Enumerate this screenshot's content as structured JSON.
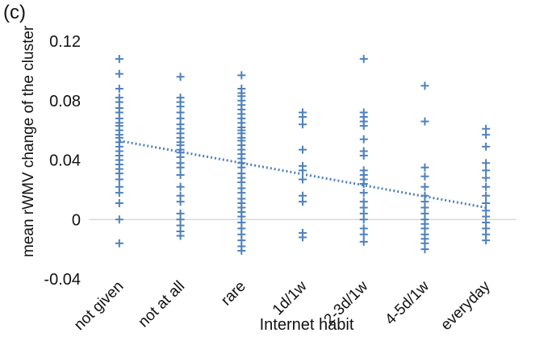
{
  "panel_label": "(c)",
  "chart_data": {
    "type": "scatter",
    "title": "",
    "xlabel": "Internet habit",
    "ylabel": "mean rWMV change of the cluster",
    "categories": [
      "not given",
      "not at all",
      "rare",
      "1d/1w",
      "2-3d/1w",
      "4-5d/1w",
      "everyday"
    ],
    "ylim": [
      -0.04,
      0.12
    ],
    "yticks": [
      -0.04,
      0,
      0.04,
      0.08,
      0.12
    ],
    "ytick_labels": [
      "-0.04",
      "0",
      "0.04",
      "0.08",
      "0.12"
    ],
    "marker": "plus",
    "marker_color": "#4f81bd",
    "grid": "zero line only",
    "legend": "none",
    "series": [
      {
        "values": [
          [
            0.108,
            0.098,
            0.088,
            0.082,
            0.079,
            0.075,
            0.072,
            0.068,
            0.065,
            0.063,
            0.06,
            0.057,
            0.055,
            0.052,
            0.049,
            0.046,
            0.043,
            0.04,
            0.037,
            0.034,
            0.031,
            0.027,
            0.022,
            0.018,
            0.011,
            0.0,
            -0.016
          ],
          [
            0.096,
            0.082,
            0.079,
            0.076,
            0.072,
            0.068,
            0.064,
            0.061,
            0.058,
            0.055,
            0.052,
            0.05,
            0.047,
            0.045,
            0.042,
            0.038,
            0.035,
            0.03,
            0.022,
            0.016,
            0.012,
            0.004,
            0.0,
            -0.004,
            -0.008,
            -0.011
          ],
          [
            0.097,
            0.088,
            0.085,
            0.083,
            0.08,
            0.077,
            0.074,
            0.071,
            0.068,
            0.065,
            0.062,
            0.06,
            0.058,
            0.055,
            0.053,
            0.05,
            0.047,
            0.044,
            0.041,
            0.038,
            0.035,
            0.031,
            0.028,
            0.025,
            0.021,
            0.018,
            0.014,
            0.011,
            0.008,
            0.005,
            0.002,
            -0.002,
            -0.006,
            -0.01,
            -0.014,
            -0.018,
            -0.021
          ],
          [
            0.072,
            0.069,
            0.064,
            0.047,
            0.036,
            0.033,
            0.027,
            0.016,
            0.012,
            -0.009,
            -0.012
          ],
          [
            0.108,
            0.072,
            0.069,
            0.066,
            0.063,
            0.054,
            0.046,
            0.043,
            0.033,
            0.03,
            0.027,
            0.024,
            0.018,
            0.012,
            0.008,
            0.004,
            0.0,
            -0.006,
            -0.01,
            -0.015
          ],
          [
            0.09,
            0.066,
            0.035,
            0.029,
            0.022,
            0.016,
            0.012,
            0.008,
            0.004,
            0.0,
            -0.003,
            -0.006,
            -0.01,
            -0.013,
            -0.016,
            -0.02
          ],
          [
            0.061,
            0.057,
            0.049,
            0.038,
            0.033,
            0.028,
            0.022,
            0.016,
            0.011,
            0.006,
            0.002,
            -0.002,
            -0.006,
            -0.01,
            -0.014
          ]
        ]
      }
    ],
    "trendline": {
      "style": "dotted linear",
      "start": 0.053,
      "end": 0.008
    }
  }
}
